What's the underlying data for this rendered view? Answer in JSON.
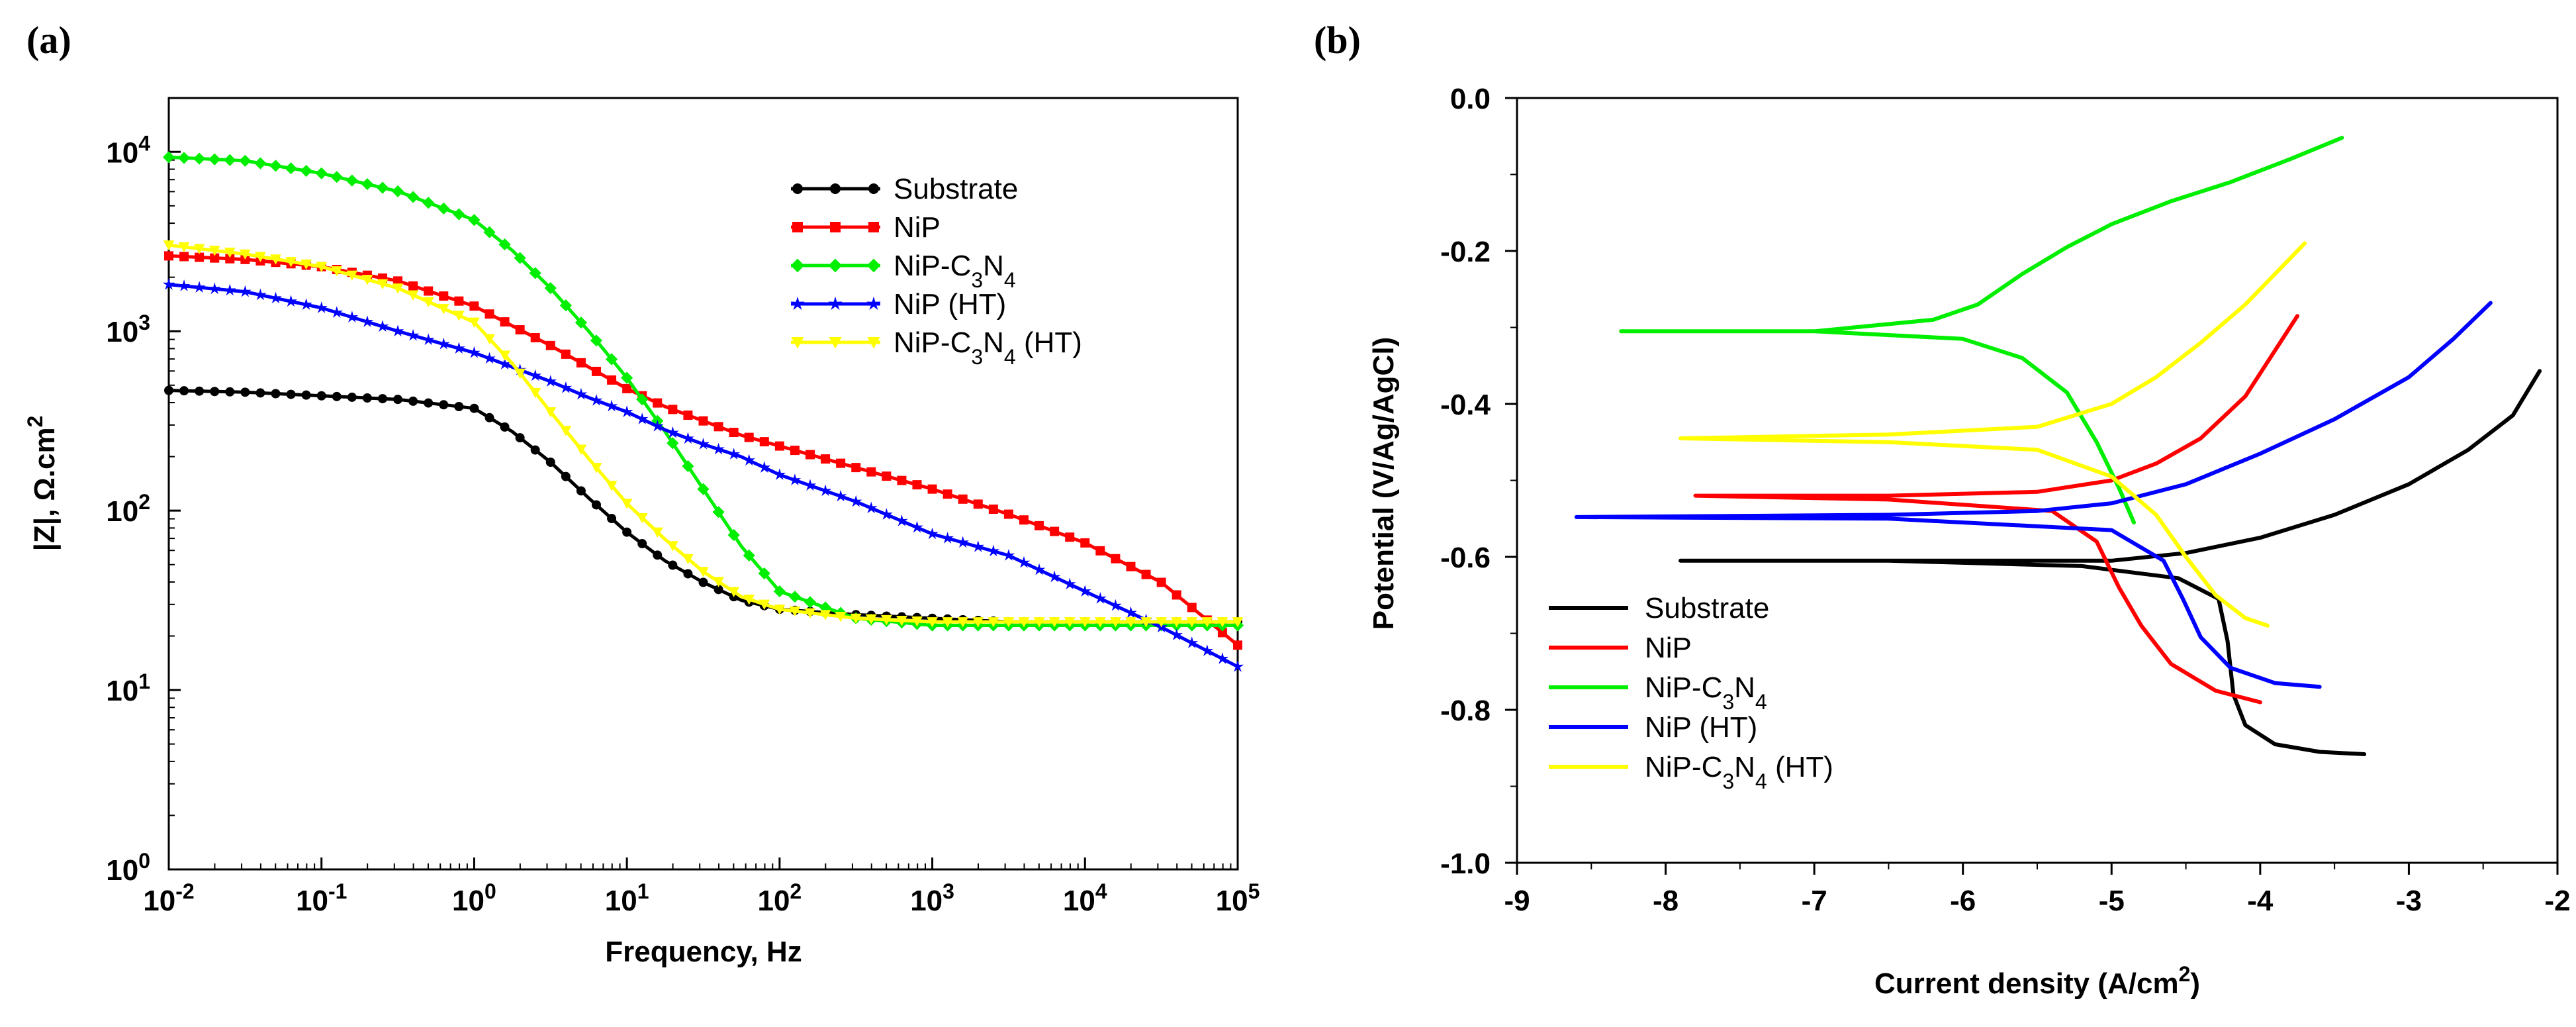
{
  "panel_a_label": "(a)",
  "panel_b_label": "(b)",
  "colors": {
    "Substrate": "#000000",
    "NiP": "#ff0000",
    "NiP-C3N4": "#00ee00",
    "NiP (HT)": "#0000ff",
    "NiP-C3N4 (HT)": "#ffff00"
  },
  "chart_data": [
    {
      "type": "line",
      "title": "",
      "xlabel": "Frequency, Hz",
      "ylabel": "|Z|, Ω.cm2",
      "xscale": "log",
      "yscale": "log",
      "xlim_exp": [
        -2,
        5
      ],
      "ylim_exp": [
        0,
        4.3
      ],
      "x_ticks": [
        "10-2",
        "10-1",
        "100",
        "101",
        "102",
        "103",
        "104",
        "105"
      ],
      "y_ticks": [
        "100",
        "101",
        "102",
        "103",
        "104"
      ],
      "legend_position": "top-right",
      "log_freq": [
        -2,
        -1.5,
        -1,
        -0.5,
        0,
        0.25,
        0.5,
        0.75,
        1,
        1.25,
        1.5,
        1.75,
        2,
        2.5,
        3,
        3.5,
        4,
        4.5,
        5
      ],
      "series": [
        {
          "name": "Substrate",
          "label": "Substrate",
          "marker": "circle",
          "log_z": [
            2.67,
            2.66,
            2.64,
            2.62,
            2.57,
            2.44,
            2.27,
            2.07,
            1.88,
            1.72,
            1.6,
            1.5,
            1.45,
            1.42,
            1.4,
            1.38,
            1.38,
            1.38,
            1.38
          ]
        },
        {
          "name": "NiP",
          "label": "NiP",
          "marker": "square",
          "log_z": [
            3.42,
            3.4,
            3.36,
            3.28,
            3.14,
            3.03,
            2.92,
            2.8,
            2.68,
            2.58,
            2.5,
            2.42,
            2.36,
            2.24,
            2.12,
            1.98,
            1.82,
            1.6,
            1.25
          ]
        },
        {
          "name": "NiP-C3N4",
          "label": "NiP-C3N4",
          "marker": "diamond",
          "log_z": [
            3.97,
            3.95,
            3.88,
            3.78,
            3.62,
            3.45,
            3.24,
            3.0,
            2.74,
            2.44,
            2.12,
            1.8,
            1.55,
            1.4,
            1.36,
            1.36,
            1.36,
            1.36,
            1.36
          ]
        },
        {
          "name": "NiP (HT)",
          "label": "NiP (HT)",
          "marker": "star",
          "log_z": [
            3.26,
            3.22,
            3.13,
            3.0,
            2.88,
            2.8,
            2.72,
            2.63,
            2.55,
            2.45,
            2.37,
            2.3,
            2.2,
            2.05,
            1.87,
            1.75,
            1.55,
            1.35,
            1.13
          ]
        },
        {
          "name": "NiP-C3N4 (HT)",
          "label": "NiP-C3N4 (HT)",
          "marker": "triangle-down",
          "log_z": [
            3.48,
            3.43,
            3.36,
            3.24,
            3.05,
            2.82,
            2.55,
            2.29,
            2.04,
            1.84,
            1.66,
            1.52,
            1.45,
            1.4,
            1.38,
            1.38,
            1.38,
            1.38,
            1.38
          ]
        }
      ]
    },
    {
      "type": "line",
      "title": "",
      "xlabel": "Current density (A/cm2)",
      "ylabel": "Potential (V/Ag/AgCl)",
      "xlim": [
        -9,
        -2
      ],
      "ylim": [
        -1.0,
        0.0
      ],
      "x_ticks": [
        "-9",
        "-8",
        "-7",
        "-6",
        "-5",
        "-4",
        "-3",
        "-2"
      ],
      "y_ticks": [
        "0.0",
        "-0.2",
        "-0.4",
        "-0.6",
        "-0.8",
        "-1.0"
      ],
      "legend_position": "bottom-left",
      "series": [
        {
          "name": "Substrate",
          "label": "Substrate",
          "x": [
            -3.3,
            -3.6,
            -3.9,
            -4.1,
            -4.18,
            -4.22,
            -4.28,
            -4.55,
            -5.2,
            -6.5,
            -7.9,
            -6.0,
            -5.0,
            -4.5,
            -4.0,
            -3.5,
            -3.0,
            -2.6,
            -2.3,
            -2.12
          ],
          "y": [
            -0.858,
            -0.855,
            -0.845,
            -0.82,
            -0.78,
            -0.71,
            -0.655,
            -0.628,
            -0.612,
            -0.605,
            -0.605,
            -0.605,
            -0.605,
            -0.595,
            -0.575,
            -0.545,
            -0.505,
            -0.46,
            -0.415,
            -0.357
          ]
        },
        {
          "name": "NiP",
          "label": "NiP",
          "x": [
            -4.0,
            -4.3,
            -4.6,
            -4.8,
            -4.95,
            -5.1,
            -5.4,
            -6.5,
            -7.8,
            -6.5,
            -5.5,
            -5.0,
            -4.7,
            -4.4,
            -4.1,
            -3.9,
            -3.75
          ],
          "y": [
            -0.79,
            -0.775,
            -0.74,
            -0.69,
            -0.64,
            -0.58,
            -0.54,
            -0.525,
            -0.52,
            -0.52,
            -0.515,
            -0.5,
            -0.478,
            -0.445,
            -0.39,
            -0.33,
            -0.285
          ]
        },
        {
          "name": "NiP-C3N4",
          "label": "NiP-C3N4",
          "x": [
            -4.85,
            -4.95,
            -5.1,
            -5.3,
            -5.6,
            -6.0,
            -7.0,
            -8.3,
            -7.0,
            -6.2,
            -5.9,
            -5.6,
            -5.3,
            -5.0,
            -4.6,
            -4.2,
            -3.8,
            -3.45
          ],
          "y": [
            -0.555,
            -0.51,
            -0.45,
            -0.385,
            -0.34,
            -0.315,
            -0.305,
            -0.305,
            -0.305,
            -0.29,
            -0.27,
            -0.23,
            -0.195,
            -0.165,
            -0.135,
            -0.11,
            -0.08,
            -0.052
          ]
        },
        {
          "name": "NiP (HT)",
          "label": "NiP (HT)",
          "x": [
            -3.6,
            -3.9,
            -4.2,
            -4.4,
            -4.52,
            -4.65,
            -5.0,
            -6.5,
            -8.6,
            -6.5,
            -5.5,
            -5.0,
            -4.5,
            -4.0,
            -3.5,
            -3.0,
            -2.7,
            -2.45
          ],
          "y": [
            -0.77,
            -0.765,
            -0.745,
            -0.705,
            -0.655,
            -0.605,
            -0.565,
            -0.55,
            -0.548,
            -0.545,
            -0.54,
            -0.53,
            -0.505,
            -0.465,
            -0.42,
            -0.365,
            -0.315,
            -0.268
          ]
        },
        {
          "name": "NiP-C3N4 (HT)",
          "label": "NiP-C3N4 (HT)",
          "x": [
            -3.95,
            -4.1,
            -4.3,
            -4.5,
            -4.7,
            -5.0,
            -5.5,
            -6.5,
            -7.9,
            -6.5,
            -5.5,
            -5.0,
            -4.7,
            -4.4,
            -4.1,
            -3.85,
            -3.7
          ],
          "y": [
            -0.69,
            -0.68,
            -0.65,
            -0.6,
            -0.545,
            -0.495,
            -0.46,
            -0.45,
            -0.445,
            -0.44,
            -0.43,
            -0.4,
            -0.365,
            -0.32,
            -0.27,
            -0.22,
            -0.19
          ]
        }
      ]
    }
  ]
}
